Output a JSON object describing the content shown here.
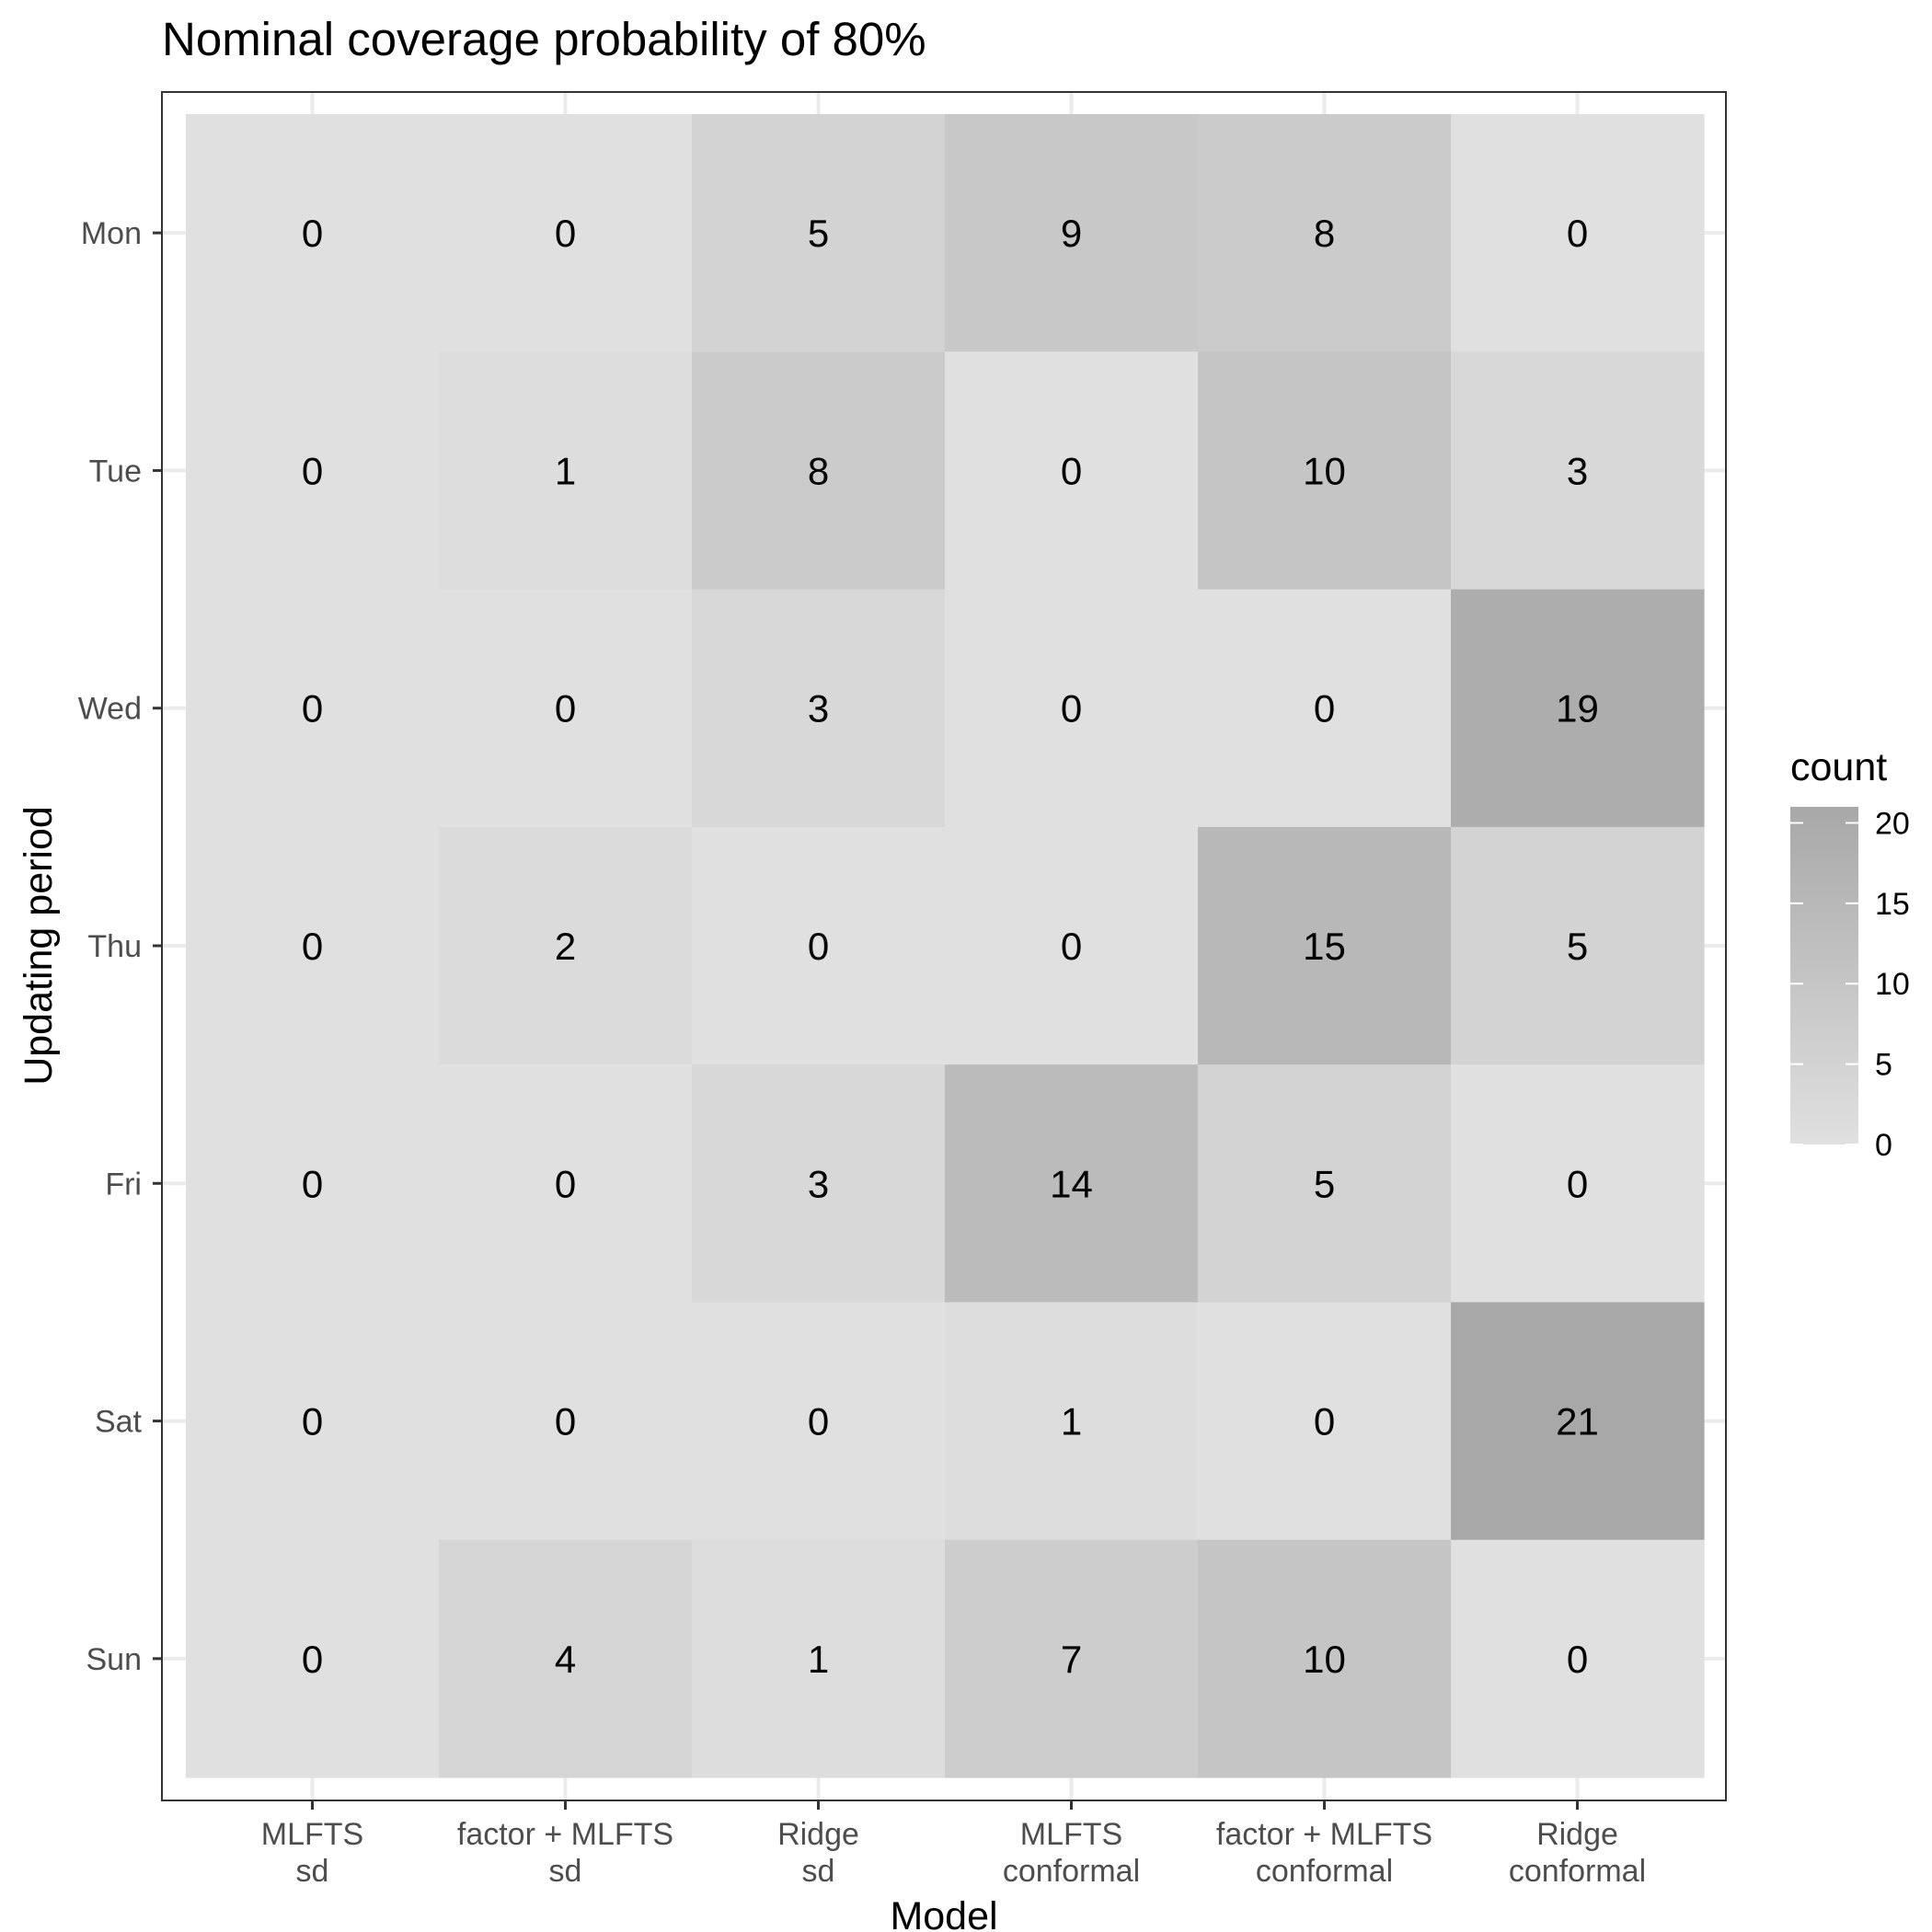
{
  "colors": {
    "background": "#ffffff",
    "grid": "#ebebeb",
    "panel_border": "#333333",
    "tick": "#333333",
    "low": "#e0e0e0",
    "high": "#a8a8a8"
  },
  "chart_data": {
    "type": "heatmap",
    "title": "Nominal coverage probability of 80%",
    "xlabel": "Model",
    "ylabel": "Updating period",
    "x_categories": [
      [
        "MLFTS",
        "sd"
      ],
      [
        "factor + MLFTS",
        "sd"
      ],
      [
        "Ridge",
        "sd"
      ],
      [
        "MLFTS",
        "conformal"
      ],
      [
        "factor + MLFTS",
        "conformal"
      ],
      [
        "Ridge",
        "conformal"
      ]
    ],
    "y_categories": [
      "Mon",
      "Tue",
      "Wed",
      "Thu",
      "Fri",
      "Sat",
      "Sun"
    ],
    "values": [
      [
        0,
        0,
        5,
        9,
        8,
        0
      ],
      [
        0,
        1,
        8,
        0,
        10,
        3
      ],
      [
        0,
        0,
        3,
        0,
        0,
        19
      ],
      [
        0,
        2,
        0,
        0,
        15,
        5
      ],
      [
        0,
        0,
        3,
        14,
        5,
        0
      ],
      [
        0,
        0,
        0,
        1,
        0,
        21
      ],
      [
        0,
        4,
        1,
        7,
        10,
        0
      ]
    ],
    "legend": {
      "title": "count",
      "position": "right",
      "range": [
        0,
        21
      ],
      "ticks": [
        0,
        5,
        10,
        15,
        20
      ]
    }
  }
}
